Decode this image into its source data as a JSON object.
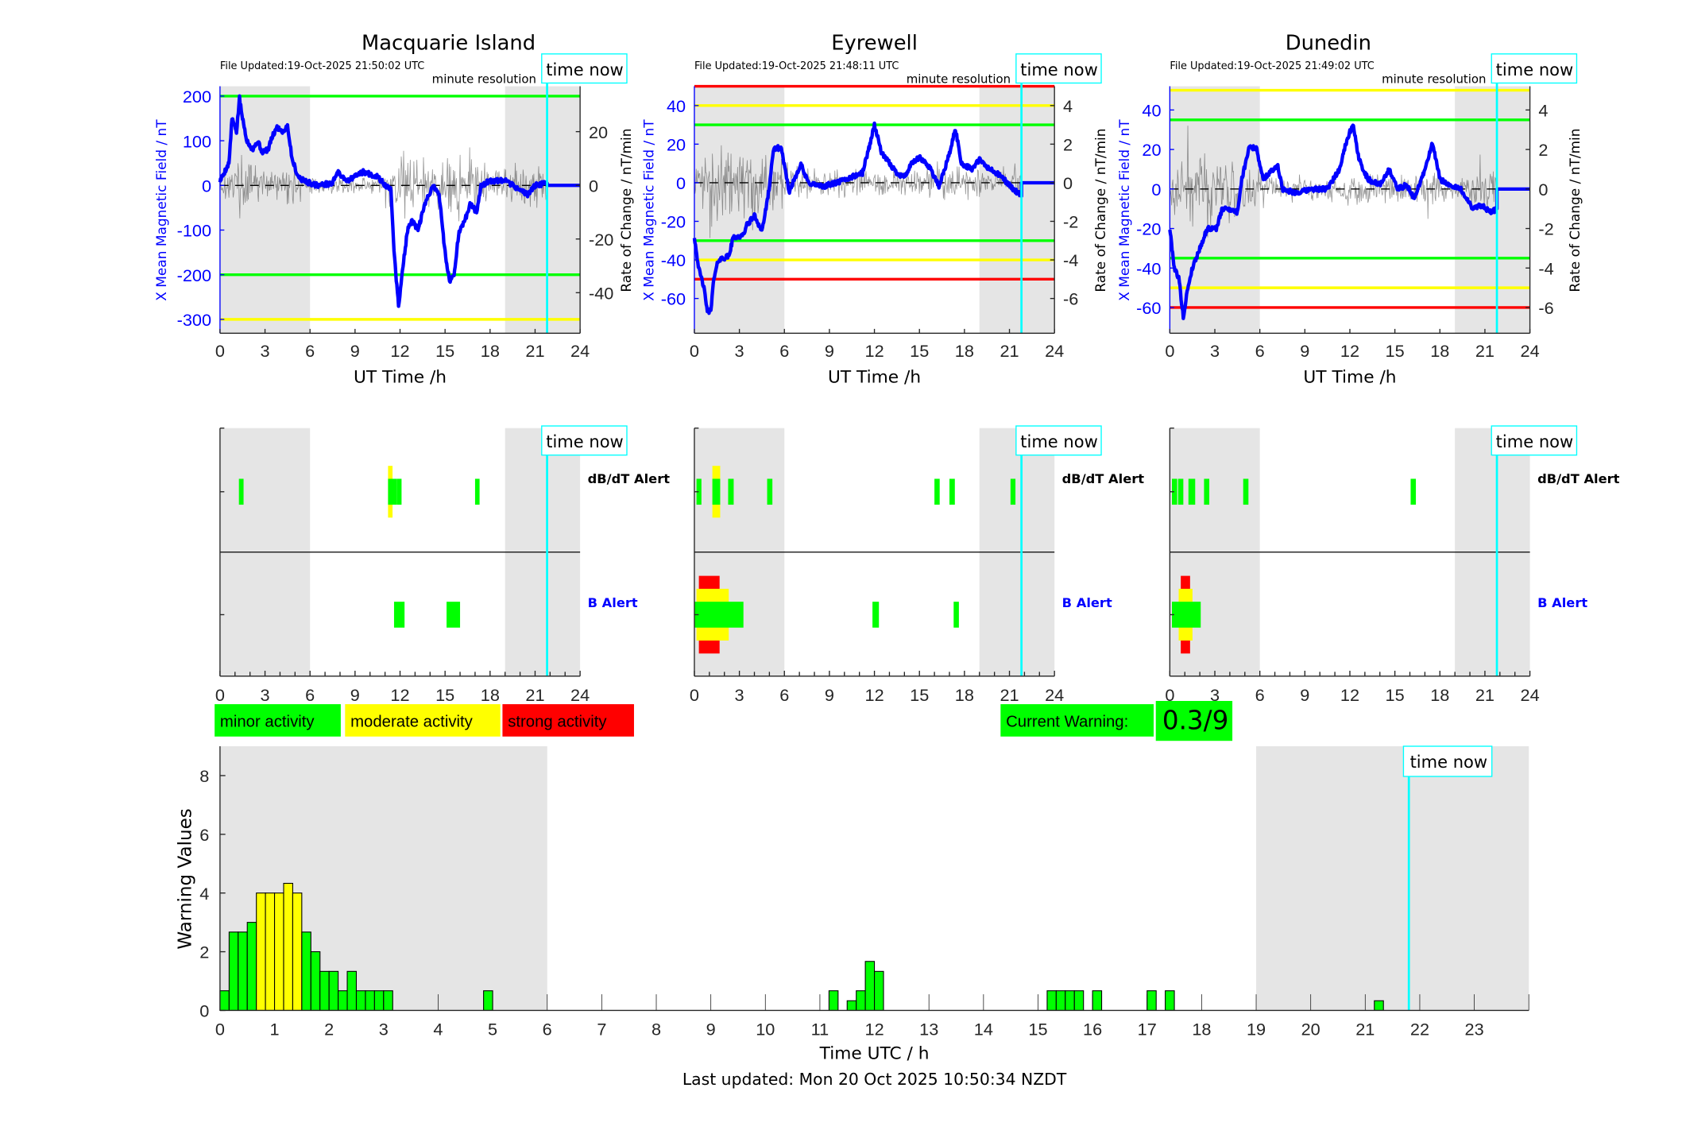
{
  "stations": [
    {
      "name": "Macquarie Island",
      "file_updated": "File Updated:19-Oct-2025 21:50:02 UTC",
      "resolution_label": "minute resolution",
      "time_now_label": "time now",
      "time_now": 21.8,
      "xlabel": "UT Time /h",
      "xticks": [
        0,
        3,
        6,
        9,
        12,
        15,
        18,
        21,
        24
      ],
      "night_shading": [
        [
          0,
          6
        ],
        [
          19,
          24
        ]
      ],
      "left_axis": {
        "label": "X Mean Magnetic Field / nT",
        "ylim": [
          -331,
          222
        ],
        "ticks": [
          -300,
          -200,
          -100,
          0,
          100,
          200
        ]
      },
      "right_axis": {
        "label": "Rate of Change / nT/min",
        "ylim": [
          -55.1,
          36.9
        ],
        "ticks": [
          -40,
          -20,
          0,
          20
        ]
      },
      "thresholds": [
        {
          "value": 200,
          "color": "#00ff00"
        },
        {
          "value": -200,
          "color": "#00ff00"
        },
        {
          "value": -300,
          "color": "#ffff00"
        }
      ],
      "field_x": [
        [
          0,
          10
        ],
        [
          0.3,
          30
        ],
        [
          0.6,
          50
        ],
        [
          0.8,
          150
        ],
        [
          1.1,
          120
        ],
        [
          1.3,
          195
        ],
        [
          1.5,
          150
        ],
        [
          1.8,
          100
        ],
        [
          2.2,
          80
        ],
        [
          2.5,
          100
        ],
        [
          2.8,
          75
        ],
        [
          3.2,
          80
        ],
        [
          3.5,
          110
        ],
        [
          3.8,
          130
        ],
        [
          4.2,
          120
        ],
        [
          4.5,
          135
        ],
        [
          4.8,
          60
        ],
        [
          5.2,
          20
        ],
        [
          5.6,
          10
        ],
        [
          6.5,
          0
        ],
        [
          7.5,
          5
        ],
        [
          7.8,
          30
        ],
        [
          8.5,
          10
        ],
        [
          9.5,
          30
        ],
        [
          10.5,
          20
        ],
        [
          11,
          0
        ],
        [
          11.4,
          -10
        ],
        [
          11.6,
          -150
        ],
        [
          11.9,
          -270
        ],
        [
          12.2,
          -180
        ],
        [
          12.5,
          -100
        ],
        [
          12.8,
          -80
        ],
        [
          13.2,
          -100
        ],
        [
          13.5,
          -60
        ],
        [
          13.8,
          -30
        ],
        [
          14.2,
          0
        ],
        [
          14.6,
          -20
        ],
        [
          15.0,
          -150
        ],
        [
          15.3,
          -215
        ],
        [
          15.6,
          -200
        ],
        [
          15.9,
          -110
        ],
        [
          16.3,
          -80
        ],
        [
          16.7,
          -40
        ],
        [
          17.1,
          -60
        ],
        [
          17.4,
          0
        ],
        [
          18,
          10
        ],
        [
          19,
          10
        ],
        [
          20,
          -10
        ],
        [
          20.5,
          -20
        ],
        [
          21,
          0
        ],
        [
          21.8,
          5
        ],
        [
          21.8,
          0
        ],
        [
          24,
          0
        ]
      ],
      "rate_envelope": [
        6,
        10,
        8,
        7,
        6,
        4,
        3,
        3,
        3,
        3,
        3,
        10,
        14,
        10,
        12,
        14,
        12,
        8,
        6,
        8,
        8,
        8,
        0,
        0
      ],
      "alerts": {
        "dbdt_label": "dB/dT Alert",
        "b_label": "B Alert",
        "dbdt": [
          {
            "start": 1.26,
            "end": 1.57,
            "level": 1
          },
          {
            "start": 11.2,
            "end": 11.5,
            "level": 2
          },
          {
            "start": 11.2,
            "end": 11.8,
            "level": 1
          },
          {
            "start": 11.8,
            "end": 12.1,
            "level": 1
          },
          {
            "start": 17.0,
            "end": 17.3,
            "level": 1
          }
        ],
        "b": [
          {
            "start": 11.6,
            "end": 12.3,
            "level": 1
          },
          {
            "start": 15.1,
            "end": 16.0,
            "level": 1
          }
        ]
      }
    },
    {
      "name": "Eyrewell",
      "file_updated": "File Updated:19-Oct-2025 21:48:11 UTC",
      "resolution_label": "minute resolution",
      "time_now_label": "time now",
      "time_now": 21.8,
      "xlabel": "UT Time /h",
      "xticks": [
        0,
        3,
        6,
        9,
        12,
        15,
        18,
        21,
        24
      ],
      "night_shading": [
        [
          0,
          6
        ],
        [
          19,
          24
        ]
      ],
      "left_axis": {
        "label": "X Mean Magnetic Field / nT",
        "ylim": [
          -78,
          50
        ],
        "ticks": [
          -60,
          -40,
          -20,
          0,
          20,
          40
        ]
      },
      "right_axis": {
        "label": "Rate of Change / nT/min",
        "ylim": [
          -7.8,
          5.0
        ],
        "ticks": [
          -6,
          -4,
          -2,
          0,
          2,
          4
        ]
      },
      "thresholds": [
        {
          "value": 50,
          "color": "#ff0000"
        },
        {
          "value": 40,
          "color": "#ffff00"
        },
        {
          "value": 30,
          "color": "#00ff00"
        },
        {
          "value": -30,
          "color": "#00ff00"
        },
        {
          "value": -40,
          "color": "#ffff00"
        },
        {
          "value": -50,
          "color": "#ff0000"
        }
      ],
      "field_x": [
        [
          0,
          -28
        ],
        [
          0.3,
          -45
        ],
        [
          0.6,
          -53
        ],
        [
          0.9,
          -68
        ],
        [
          1.1,
          -65
        ],
        [
          1.3,
          -50
        ],
        [
          1.6,
          -40
        ],
        [
          2.3,
          -38
        ],
        [
          2.6,
          -28
        ],
        [
          3.2,
          -28
        ],
        [
          3.5,
          -22
        ],
        [
          4,
          -17
        ],
        [
          4.5,
          -25
        ],
        [
          4.9,
          -8
        ],
        [
          5.3,
          18
        ],
        [
          5.8,
          18
        ],
        [
          6.3,
          -5
        ],
        [
          7.1,
          10
        ],
        [
          7.3,
          5
        ],
        [
          7.6,
          0
        ],
        [
          8.5,
          -2
        ],
        [
          9.5,
          0
        ],
        [
          10.5,
          3
        ],
        [
          11.2,
          5
        ],
        [
          11.7,
          20
        ],
        [
          12.0,
          30
        ],
        [
          12.5,
          15
        ],
        [
          13,
          10
        ],
        [
          13.5,
          5
        ],
        [
          14,
          3
        ],
        [
          14.5,
          10
        ],
        [
          15,
          13
        ],
        [
          15.7,
          8
        ],
        [
          16.3,
          -2
        ],
        [
          17,
          15
        ],
        [
          17.4,
          28
        ],
        [
          17.8,
          10
        ],
        [
          18.5,
          7
        ],
        [
          19,
          12
        ],
        [
          19.5,
          8
        ],
        [
          20.5,
          3
        ],
        [
          21.2,
          -3
        ],
        [
          21.8,
          -7
        ],
        [
          21.8,
          0
        ],
        [
          24,
          0
        ]
      ],
      "rate_envelope": [
        1.5,
        2.5,
        2,
        1.8,
        1.5,
        1.5,
        1,
        0.8,
        0.8,
        0.7,
        0.7,
        0.8,
        0.8,
        0.7,
        0.7,
        0.8,
        1,
        0.8,
        0.8,
        0.8,
        0.7,
        1,
        0,
        0
      ],
      "alerts": {
        "dbdt_label": "dB/dT Alert",
        "b_label": "B Alert",
        "dbdt": [
          {
            "start": 0.14,
            "end": 0.47,
            "level": 1
          },
          {
            "start": 1.2,
            "end": 1.72,
            "level": 2
          },
          {
            "start": 1.2,
            "end": 1.72,
            "level": 1
          },
          {
            "start": 2.25,
            "end": 2.62,
            "level": 1
          },
          {
            "start": 4.85,
            "end": 5.2,
            "level": 1
          },
          {
            "start": 16.0,
            "end": 16.35,
            "level": 1
          },
          {
            "start": 17.0,
            "end": 17.36,
            "level": 1
          },
          {
            "start": 21.07,
            "end": 21.4,
            "level": 1
          }
        ],
        "b": [
          {
            "start": 0.3,
            "end": 1.68,
            "level": 3
          },
          {
            "start": 0.14,
            "end": 2.29,
            "level": 2
          },
          {
            "start": 0,
            "end": 3.27,
            "level": 1
          },
          {
            "start": 11.87,
            "end": 12.3,
            "level": 1
          },
          {
            "start": 17.28,
            "end": 17.63,
            "level": 1
          }
        ]
      }
    },
    {
      "name": "Dunedin",
      "file_updated": "File Updated:19-Oct-2025 21:49:02 UTC",
      "resolution_label": "minute resolution",
      "time_now_label": "time now",
      "time_now": 21.8,
      "xlabel": "UT Time /h",
      "xticks": [
        0,
        3,
        6,
        9,
        12,
        15,
        18,
        21,
        24
      ],
      "night_shading": [
        [
          0,
          6
        ],
        [
          19,
          24
        ]
      ],
      "left_axis": {
        "label": "X Mean Magnetic Field / nT",
        "ylim": [
          -73,
          52
        ],
        "ticks": [
          -60,
          -40,
          -20,
          0,
          20,
          40
        ]
      },
      "right_axis": {
        "label": "Rate of Change / nT/min",
        "ylim": [
          -7.3,
          5.2
        ],
        "ticks": [
          -6,
          -4,
          -2,
          0,
          2,
          4
        ]
      },
      "thresholds": [
        {
          "value": 50,
          "color": "#ffff00"
        },
        {
          "value": 35,
          "color": "#00ff00"
        },
        {
          "value": -35,
          "color": "#00ff00"
        },
        {
          "value": -50,
          "color": "#ffff00"
        },
        {
          "value": -60,
          "color": "#ff0000"
        }
      ],
      "field_x": [
        [
          0,
          -20
        ],
        [
          0.3,
          -40
        ],
        [
          0.6,
          -45
        ],
        [
          0.9,
          -65
        ],
        [
          1.2,
          -50
        ],
        [
          1.5,
          -40
        ],
        [
          2,
          -30
        ],
        [
          2.5,
          -20
        ],
        [
          3.1,
          -20
        ],
        [
          3.5,
          -10
        ],
        [
          4,
          -10
        ],
        [
          4.5,
          -12
        ],
        [
          4.8,
          5
        ],
        [
          5.3,
          22
        ],
        [
          5.8,
          20
        ],
        [
          6.2,
          5
        ],
        [
          7.2,
          12
        ],
        [
          7.5,
          0
        ],
        [
          8.5,
          -2
        ],
        [
          9.5,
          0
        ],
        [
          10.5,
          0
        ],
        [
          11.3,
          10
        ],
        [
          11.8,
          25
        ],
        [
          12.2,
          33
        ],
        [
          12.6,
          15
        ],
        [
          13.2,
          5
        ],
        [
          14,
          2
        ],
        [
          14.6,
          10
        ],
        [
          15.2,
          0
        ],
        [
          15.8,
          2
        ],
        [
          16.3,
          -5
        ],
        [
          17,
          10
        ],
        [
          17.5,
          23
        ],
        [
          18,
          5
        ],
        [
          18.8,
          1
        ],
        [
          19.4,
          0
        ],
        [
          20.2,
          -10
        ],
        [
          20.8,
          -8
        ],
        [
          21.4,
          -12
        ],
        [
          21.8,
          -10
        ],
        [
          21.8,
          0
        ],
        [
          24,
          0
        ]
      ],
      "rate_envelope": [
        1.5,
        2.5,
        2,
        1.8,
        1.5,
        1.3,
        1,
        0.8,
        0.8,
        0.6,
        0.6,
        0.7,
        0.8,
        0.7,
        0.7,
        0.7,
        1,
        0.8,
        0.7,
        0.7,
        0.8,
        1,
        0,
        0
      ],
      "alerts": {
        "dbdt_label": "dB/dT Alert",
        "b_label": "B Alert",
        "dbdt": [
          {
            "start": 0.14,
            "end": 0.49,
            "level": 1
          },
          {
            "start": 0.55,
            "end": 0.9,
            "level": 1
          },
          {
            "start": 1.24,
            "end": 1.69,
            "level": 1
          },
          {
            "start": 2.28,
            "end": 2.63,
            "level": 1
          },
          {
            "start": 4.89,
            "end": 5.24,
            "level": 1
          },
          {
            "start": 16.05,
            "end": 16.4,
            "level": 1
          }
        ],
        "b": [
          {
            "start": 0.73,
            "end": 1.35,
            "level": 3
          },
          {
            "start": 0.59,
            "end": 1.51,
            "level": 2
          },
          {
            "start": 0.14,
            "end": 2.06,
            "level": 1
          }
        ]
      }
    }
  ],
  "alert_level_colors": {
    "1": "#00ff00",
    "2": "#ffff00",
    "3": "#ff0000"
  },
  "field_line_color": "#0000ff",
  "time_now_color": "#00ffff",
  "night_color": "#e5e5e5",
  "legend": [
    {
      "label": "minor activity",
      "color": "#00ff00"
    },
    {
      "label": "moderate activity",
      "color": "#ffff00"
    },
    {
      "label": "strong activity",
      "color": "#ff0000"
    }
  ],
  "current_warning": {
    "label": "Current Warning:",
    "value": "0.3/9",
    "color": "#00ff00"
  },
  "chart_data": {
    "type": "bar",
    "xlabel": "Time UTC / h",
    "ylabel": "Warning Values",
    "xlim": [
      0,
      24
    ],
    "ylim": [
      0,
      9
    ],
    "xticks": [
      0,
      1,
      2,
      3,
      4,
      5,
      6,
      7,
      8,
      9,
      10,
      11,
      12,
      13,
      14,
      15,
      16,
      17,
      18,
      19,
      20,
      21,
      22,
      23
    ],
    "yticks": [
      0,
      2,
      4,
      6,
      8
    ],
    "bin_width_h": 0.1667,
    "night_shading": [
      [
        0,
        6
      ],
      [
        19,
        24
      ]
    ],
    "time_now": 21.8,
    "time_now_label": "time now",
    "bins": [
      {
        "start": 0.0,
        "value": 0.67,
        "level": 1
      },
      {
        "start": 0.167,
        "value": 2.67,
        "level": 1
      },
      {
        "start": 0.333,
        "value": 2.67,
        "level": 1
      },
      {
        "start": 0.5,
        "value": 3,
        "level": 1
      },
      {
        "start": 0.667,
        "value": 4,
        "level": 2
      },
      {
        "start": 0.833,
        "value": 4,
        "level": 2
      },
      {
        "start": 1.0,
        "value": 4,
        "level": 2
      },
      {
        "start": 1.167,
        "value": 4.33,
        "level": 2
      },
      {
        "start": 1.333,
        "value": 4,
        "level": 2
      },
      {
        "start": 1.5,
        "value": 2.67,
        "level": 1
      },
      {
        "start": 1.667,
        "value": 2,
        "level": 1
      },
      {
        "start": 1.833,
        "value": 1.33,
        "level": 1
      },
      {
        "start": 2.0,
        "value": 1.33,
        "level": 1
      },
      {
        "start": 2.167,
        "value": 0.67,
        "level": 1
      },
      {
        "start": 2.333,
        "value": 1.33,
        "level": 1
      },
      {
        "start": 2.5,
        "value": 0.67,
        "level": 1
      },
      {
        "start": 2.667,
        "value": 0.67,
        "level": 1
      },
      {
        "start": 2.833,
        "value": 0.67,
        "level": 1
      },
      {
        "start": 3.0,
        "value": 0.67,
        "level": 1
      },
      {
        "start": 4.833,
        "value": 0.67,
        "level": 1
      },
      {
        "start": 11.167,
        "value": 0.67,
        "level": 1
      },
      {
        "start": 11.5,
        "value": 0.33,
        "level": 1
      },
      {
        "start": 11.667,
        "value": 0.67,
        "level": 1
      },
      {
        "start": 11.833,
        "value": 1.67,
        "level": 1
      },
      {
        "start": 12.0,
        "value": 1.33,
        "level": 1
      },
      {
        "start": 15.167,
        "value": 0.67,
        "level": 1
      },
      {
        "start": 15.333,
        "value": 0.67,
        "level": 1
      },
      {
        "start": 15.5,
        "value": 0.67,
        "level": 1
      },
      {
        "start": 15.667,
        "value": 0.67,
        "level": 1
      },
      {
        "start": 16.0,
        "value": 0.67,
        "level": 1
      },
      {
        "start": 17.0,
        "value": 0.67,
        "level": 1
      },
      {
        "start": 17.333,
        "value": 0.67,
        "level": 1
      },
      {
        "start": 21.167,
        "value": 0.33,
        "level": 1
      }
    ]
  },
  "footer": "Last updated: Mon 20 Oct 2025 10:50:34 NZDT"
}
